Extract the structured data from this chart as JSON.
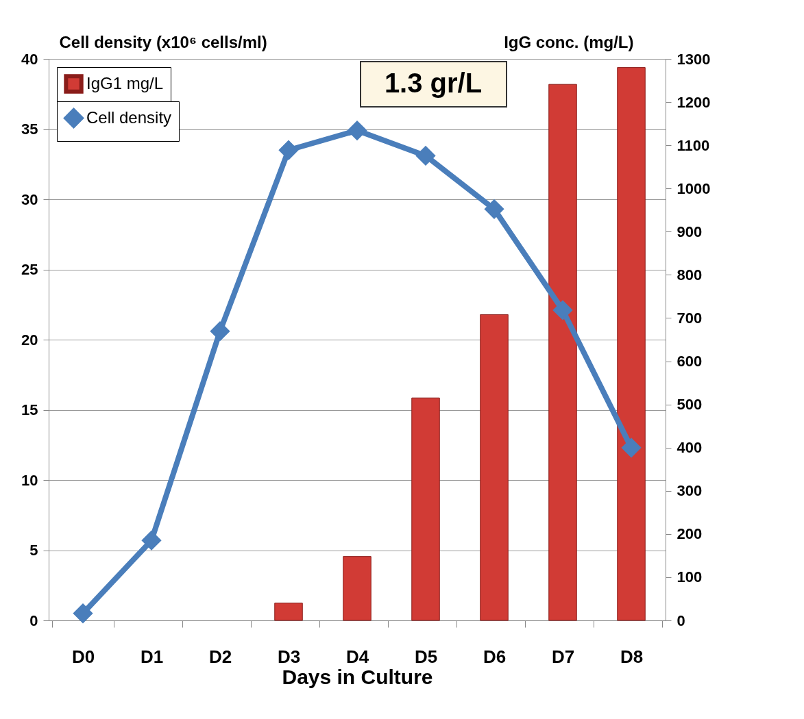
{
  "chart_data": {
    "type": "bar",
    "categories": [
      "D0",
      "D1",
      "D2",
      "D3",
      "D4",
      "D5",
      "D6",
      "D7",
      "D8"
    ],
    "series": [
      {
        "name": "IgG1 mg/L",
        "axis": "y2",
        "color": "#d13b35",
        "values": [
          null,
          null,
          null,
          40,
          148,
          515,
          708,
          1241,
          1280
        ]
      },
      {
        "name": "Cell density",
        "type": "line",
        "color": "#4a7ebb",
        "values": [
          0.5,
          5.7,
          20.6,
          33.5,
          34.9,
          33.1,
          29.3,
          22.1,
          12.3
        ]
      }
    ],
    "xlabel": "Days in Culture",
    "ylabel": "Cell density (x10⁶ cells/ml)",
    "y2label": "IgG conc. (mg/L)",
    "ylim": [
      0,
      40
    ],
    "yticks": [
      0,
      5,
      10,
      15,
      20,
      25,
      30,
      35,
      40
    ],
    "y2lim": [
      0,
      1300
    ],
    "y2ticks": [
      0,
      100,
      200,
      300,
      400,
      500,
      600,
      700,
      800,
      900,
      1000,
      1100,
      1200,
      1300
    ],
    "annotations": [
      "1.3 gr/L"
    ],
    "grid": "y",
    "legend": "top left",
    "marker": "diamond",
    "line_style": "solid"
  }
}
